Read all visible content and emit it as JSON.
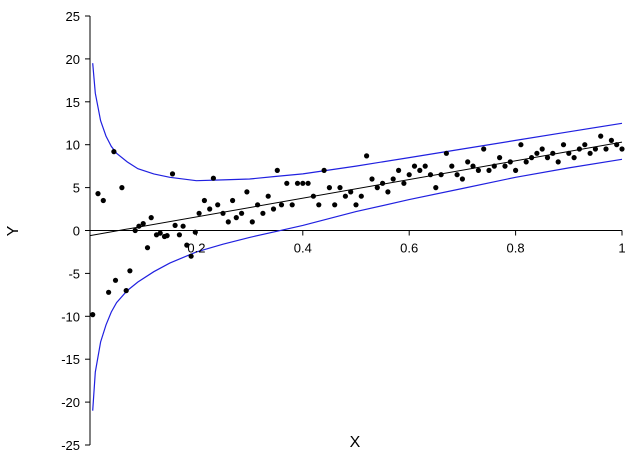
{
  "chart_data": {
    "type": "scatter",
    "title": "",
    "xlabel": "X",
    "ylabel": "Y",
    "xlim": [
      0,
      1
    ],
    "ylim": [
      -25,
      25
    ],
    "x_ticks": [
      0.2,
      0.4,
      0.6,
      0.8,
      1
    ],
    "x_tick_labels": [
      "0.2",
      "0.4",
      "0.6",
      "0.8",
      "1"
    ],
    "y_ticks": [
      25,
      20,
      15,
      10,
      5,
      0,
      -5,
      -10,
      -15,
      -20,
      -25
    ],
    "y_tick_labels": [
      "25",
      "20",
      "15",
      "10",
      "5",
      "0",
      "-5",
      "-10",
      "-15",
      "-20",
      "-25"
    ],
    "grid": false,
    "legend": "none",
    "colors": {
      "points": "#000000",
      "fit": "#000000",
      "bands": "#2020e0"
    },
    "series": [
      {
        "kind": "points",
        "x": [
          0.005,
          0.015,
          0.025,
          0.035,
          0.045,
          0.048,
          0.06,
          0.068,
          0.075,
          0.085,
          0.092,
          0.1,
          0.108,
          0.115,
          0.125,
          0.132,
          0.14,
          0.145,
          0.155,
          0.16,
          0.168,
          0.175,
          0.182,
          0.19,
          0.198,
          0.205,
          0.215,
          0.225,
          0.232,
          0.24,
          0.25,
          0.26,
          0.268,
          0.275,
          0.285,
          0.295,
          0.305,
          0.315,
          0.325,
          0.335,
          0.345,
          0.352,
          0.36,
          0.37,
          0.38,
          0.39,
          0.4,
          0.41,
          0.42,
          0.43,
          0.44,
          0.45,
          0.46,
          0.47,
          0.48,
          0.49,
          0.5,
          0.51,
          0.52,
          0.53,
          0.54,
          0.55,
          0.56,
          0.57,
          0.58,
          0.59,
          0.6,
          0.61,
          0.62,
          0.63,
          0.64,
          0.65,
          0.66,
          0.67,
          0.68,
          0.69,
          0.7,
          0.71,
          0.72,
          0.73,
          0.74,
          0.75,
          0.76,
          0.77,
          0.78,
          0.79,
          0.8,
          0.81,
          0.82,
          0.83,
          0.84,
          0.85,
          0.86,
          0.87,
          0.88,
          0.89,
          0.9,
          0.91,
          0.92,
          0.93,
          0.94,
          0.95,
          0.96,
          0.97,
          0.98,
          0.99,
          1.0
        ],
        "y": [
          -9.8,
          4.3,
          3.5,
          -7.2,
          9.2,
          -5.8,
          5.0,
          -7.0,
          -4.7,
          0.0,
          0.5,
          0.8,
          -2.0,
          1.5,
          -0.5,
          -0.3,
          -0.7,
          -0.6,
          6.6,
          0.6,
          -0.5,
          0.5,
          -1.7,
          -3.0,
          -0.2,
          2.0,
          3.5,
          2.5,
          6.1,
          3.0,
          2.0,
          1.0,
          3.5,
          1.5,
          2.0,
          4.5,
          1.0,
          3.0,
          2.0,
          4.0,
          2.5,
          7.0,
          3.0,
          5.5,
          3.0,
          5.5,
          5.5,
          5.5,
          4.0,
          3.0,
          7.0,
          5.0,
          3.0,
          5.0,
          4.0,
          4.5,
          3.0,
          4.0,
          8.7,
          6.0,
          5.0,
          5.5,
          4.5,
          6.0,
          7.0,
          5.5,
          6.5,
          7.5,
          7.0,
          7.5,
          6.5,
          5.0,
          6.5,
          9.0,
          7.5,
          6.5,
          6.0,
          8.0,
          7.5,
          7.0,
          9.5,
          7.0,
          7.5,
          8.5,
          7.5,
          8.0,
          7.0,
          10.0,
          8.0,
          8.5,
          9.0,
          9.5,
          8.5,
          9.0,
          8.0,
          10.0,
          9.0,
          8.5,
          9.5,
          10.0,
          9.0,
          9.5,
          11.0,
          9.5,
          10.5,
          10.0,
          9.5
        ]
      },
      {
        "kind": "fit",
        "x": [
          0,
          1
        ],
        "y": [
          -0.6,
          10.3
        ]
      },
      {
        "kind": "upper-band",
        "x": [
          0.005,
          0.01,
          0.02,
          0.03,
          0.04,
          0.05,
          0.07,
          0.09,
          0.12,
          0.15,
          0.2,
          0.25,
          0.3,
          0.35,
          0.4,
          0.5,
          0.6,
          0.7,
          0.8,
          0.9,
          1.0
        ],
        "y": [
          19.5,
          16.0,
          12.8,
          11.0,
          9.8,
          9.0,
          8.0,
          7.2,
          6.6,
          6.2,
          5.8,
          5.9,
          6.0,
          6.3,
          6.6,
          7.5,
          8.5,
          9.5,
          10.5,
          11.5,
          12.5
        ]
      },
      {
        "kind": "lower-band",
        "x": [
          0.005,
          0.01,
          0.02,
          0.03,
          0.04,
          0.05,
          0.07,
          0.09,
          0.12,
          0.15,
          0.2,
          0.25,
          0.3,
          0.35,
          0.4,
          0.5,
          0.6,
          0.7,
          0.8,
          0.9,
          1.0
        ],
        "y": [
          -21.0,
          -16.5,
          -13.0,
          -11.0,
          -9.5,
          -8.4,
          -7.0,
          -6.0,
          -4.8,
          -3.8,
          -2.5,
          -1.6,
          -0.8,
          -0.1,
          0.6,
          2.2,
          3.6,
          4.9,
          6.2,
          7.3,
          8.3
        ]
      }
    ]
  }
}
